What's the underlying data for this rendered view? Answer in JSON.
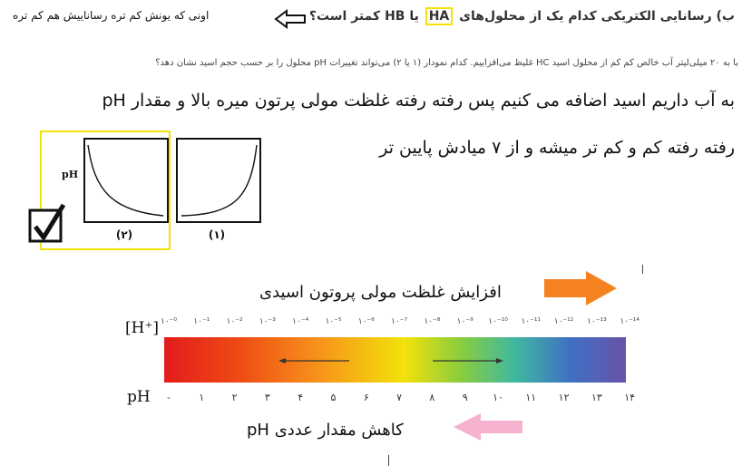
{
  "header": {
    "question_before": "ب) رسانایی الکتریکی کدام یک از محلول‌های",
    "ha": "HA",
    "question_after": "یا HB کمتر است؟",
    "comment": "اونی که یونش کم تره رساناییش هم کم تره"
  },
  "sub_question": "با به ۲۰ میلی‌لیتر آب خالص کم کم از محلول اسید HC غلیظ می‌افزاییم. کدام نمودار (۱ یا ۲) می‌تواند تغییرات pH محلول را بر حسب حجم اسید نشان دهد؟",
  "answer": {
    "line1": "به آب داریم اسید اضافه می کنیم پس رفته رفته غلظت مولی پرتون میره بالا و مقدار pH",
    "line2": "رفته رفته کم و کم تر میشه و از ۷ میادش پایین تر"
  },
  "graphs": {
    "y_label": "pH",
    "graph2_caption": "(۲)",
    "graph1_caption": "(۱)",
    "selected": "graph-2"
  },
  "scale": {
    "increase_label": "افزایش غلظت مولی پروتون اسیدی",
    "decrease_label": "کاهش مقدار عددی pH",
    "h_label": "[H⁺]",
    "ph_label": "pH",
    "h_ticks": [
      "۱۰⁻⁰",
      "۱۰⁻¹",
      "۱۰⁻²",
      "۱۰⁻³",
      "۱۰⁻⁴",
      "۱۰⁻⁵",
      "۱۰⁻⁶",
      "۱۰⁻⁷",
      "۱۰⁻⁸",
      "۱۰⁻⁹",
      "۱۰⁻¹⁰",
      "۱۰⁻¹¹",
      "۱۰⁻¹²",
      "۱۰⁻¹³",
      "۱۰⁻¹⁴"
    ],
    "ph_ticks": [
      "-",
      "۱",
      "۲",
      "۳",
      "۴",
      "۵",
      "۶",
      "۷",
      "۸",
      "۹",
      "۱۰",
      "۱۱",
      "۱۲",
      "۱۳",
      "۱۴"
    ],
    "colors": {
      "orange_arrow": "#f58220",
      "pink_arrow": "#f6b2cf",
      "highlight": "#f2e20a"
    }
  }
}
